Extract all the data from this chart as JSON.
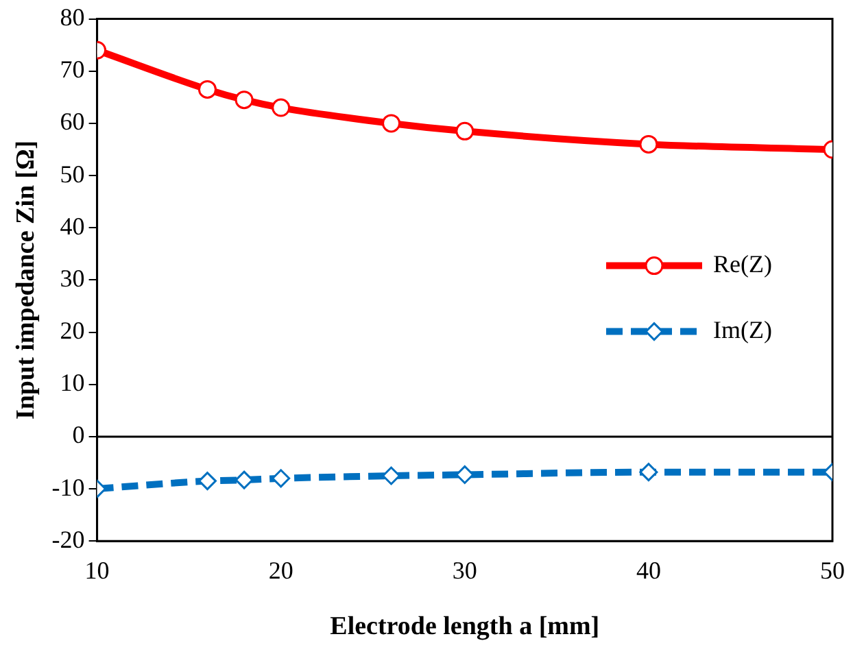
{
  "chart_data": {
    "type": "line",
    "xlabel": "Electrode length a [mm]",
    "ylabel": "Input impedance Zin [Ω]",
    "x": [
      10,
      16,
      18,
      20,
      26,
      30,
      40,
      50
    ],
    "series": [
      {
        "name": "Re(Z)",
        "color": "#ff0000",
        "marker": "circle",
        "line_style": "solid",
        "values": [
          74,
          66.5,
          64.5,
          63,
          60,
          58.5,
          56,
          55
        ]
      },
      {
        "name": "Im(Z)",
        "color": "#0070c0",
        "marker": "diamond",
        "line_style": "dashed",
        "values": [
          -10,
          -8.5,
          -8.3,
          -8,
          -7.5,
          -7.3,
          -6.8,
          -6.8
        ]
      }
    ],
    "xlim": [
      10,
      50
    ],
    "xticks": [
      10,
      20,
      30,
      40,
      50
    ],
    "ylim": [
      -20,
      80
    ],
    "yticks": [
      -20,
      -10,
      0,
      10,
      20,
      30,
      40,
      50,
      60,
      70,
      80
    ],
    "ref_lines": [
      {
        "axis": "y",
        "value": 0,
        "color": "#000000"
      }
    ],
    "grid": false,
    "legend": "right"
  }
}
